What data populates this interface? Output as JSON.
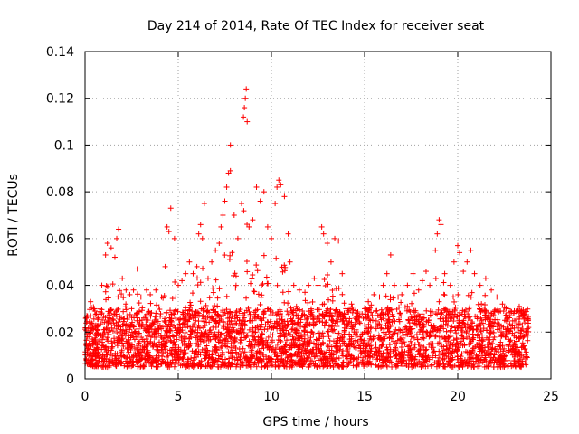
{
  "chart_data": {
    "type": "scatter",
    "title": "Day 214 of 2014, Rate Of TEC Index for receiver seat",
    "xlabel": "GPS time / hours",
    "ylabel": "ROTI / TECUs",
    "xlim": [
      0,
      25
    ],
    "ylim": [
      0,
      0.14
    ],
    "xticks": [
      0,
      5,
      10,
      15,
      20,
      25
    ],
    "yticks": [
      0,
      0.02,
      0.04,
      0.06,
      0.08,
      0.1,
      0.12,
      0.14
    ],
    "xtick_labels": [
      "0",
      "5",
      "10",
      "15",
      "20",
      "25"
    ],
    "ytick_labels": [
      "0",
      "0.02",
      "0.04",
      "0.06",
      "0.08",
      "0.1",
      "0.12",
      "0.14"
    ],
    "grid": true,
    "marker": "+",
    "color": "#ff0000",
    "series": [
      {
        "name": "ROTI",
        "x_range": [
          0,
          23.8
        ],
        "baseline_band": [
          0.005,
          0.03
        ],
        "notes": "Dense background of points between ~0.005 and ~0.03 TECU/min across the whole day.",
        "points": [
          [
            0.1,
            0.027
          ],
          [
            0.3,
            0.033
          ],
          [
            0.5,
            0.03
          ],
          [
            0.9,
            0.04
          ],
          [
            1.1,
            0.053
          ],
          [
            1.2,
            0.058
          ],
          [
            1.4,
            0.056
          ],
          [
            1.6,
            0.052
          ],
          [
            1.7,
            0.06
          ],
          [
            1.8,
            0.064
          ],
          [
            2.0,
            0.043
          ],
          [
            2.2,
            0.038
          ],
          [
            2.4,
            0.036
          ],
          [
            2.6,
            0.038
          ],
          [
            2.8,
            0.047
          ],
          [
            3.0,
            0.035
          ],
          [
            3.3,
            0.038
          ],
          [
            3.5,
            0.036
          ],
          [
            3.8,
            0.038
          ],
          [
            4.1,
            0.035
          ],
          [
            4.3,
            0.048
          ],
          [
            4.4,
            0.065
          ],
          [
            4.5,
            0.063
          ],
          [
            4.6,
            0.073
          ],
          [
            4.8,
            0.06
          ],
          [
            5.0,
            0.04
          ],
          [
            5.2,
            0.042
          ],
          [
            5.4,
            0.045
          ],
          [
            5.6,
            0.05
          ],
          [
            5.8,
            0.045
          ],
          [
            6.0,
            0.048
          ],
          [
            6.1,
            0.062
          ],
          [
            6.2,
            0.066
          ],
          [
            6.3,
            0.06
          ],
          [
            6.4,
            0.075
          ],
          [
            6.6,
            0.043
          ],
          [
            6.8,
            0.05
          ],
          [
            7.0,
            0.055
          ],
          [
            7.2,
            0.058
          ],
          [
            7.3,
            0.065
          ],
          [
            7.4,
            0.07
          ],
          [
            7.5,
            0.076
          ],
          [
            7.6,
            0.082
          ],
          [
            7.7,
            0.088
          ],
          [
            7.8,
            0.089
          ],
          [
            7.8,
            0.1
          ],
          [
            8.0,
            0.07
          ],
          [
            8.2,
            0.06
          ],
          [
            8.4,
            0.075
          ],
          [
            8.5,
            0.112
          ],
          [
            8.55,
            0.116
          ],
          [
            8.6,
            0.12
          ],
          [
            8.65,
            0.124
          ],
          [
            8.7,
            0.11
          ],
          [
            8.8,
            0.065
          ],
          [
            9.0,
            0.068
          ],
          [
            9.2,
            0.082
          ],
          [
            9.4,
            0.076
          ],
          [
            9.6,
            0.08
          ],
          [
            9.8,
            0.065
          ],
          [
            10.0,
            0.06
          ],
          [
            10.2,
            0.075
          ],
          [
            10.3,
            0.082
          ],
          [
            10.4,
            0.085
          ],
          [
            10.5,
            0.083
          ],
          [
            10.7,
            0.078
          ],
          [
            10.9,
            0.062
          ],
          [
            11.0,
            0.05
          ],
          [
            11.2,
            0.04
          ],
          [
            11.5,
            0.038
          ],
          [
            11.8,
            0.037
          ],
          [
            12.0,
            0.04
          ],
          [
            12.3,
            0.043
          ],
          [
            12.5,
            0.04
          ],
          [
            12.7,
            0.065
          ],
          [
            12.8,
            0.062
          ],
          [
            13.0,
            0.058
          ],
          [
            13.2,
            0.05
          ],
          [
            13.4,
            0.06
          ],
          [
            13.6,
            0.059
          ],
          [
            13.8,
            0.045
          ],
          [
            14.0,
            0.03
          ],
          [
            14.3,
            0.032
          ],
          [
            14.6,
            0.028
          ],
          [
            15.0,
            0.03
          ],
          [
            15.2,
            0.033
          ],
          [
            15.5,
            0.036
          ],
          [
            15.8,
            0.035
          ],
          [
            16.0,
            0.04
          ],
          [
            16.2,
            0.045
          ],
          [
            16.4,
            0.053
          ],
          [
            16.6,
            0.04
          ],
          [
            16.8,
            0.035
          ],
          [
            17.0,
            0.036
          ],
          [
            17.3,
            0.04
          ],
          [
            17.6,
            0.045
          ],
          [
            17.9,
            0.038
          ],
          [
            18.1,
            0.042
          ],
          [
            18.3,
            0.046
          ],
          [
            18.5,
            0.04
          ],
          [
            18.8,
            0.055
          ],
          [
            18.9,
            0.062
          ],
          [
            19.0,
            0.068
          ],
          [
            19.1,
            0.066
          ],
          [
            19.3,
            0.045
          ],
          [
            19.6,
            0.04
          ],
          [
            19.8,
            0.05
          ],
          [
            20.0,
            0.057
          ],
          [
            20.1,
            0.054
          ],
          [
            20.3,
            0.046
          ],
          [
            20.5,
            0.05
          ],
          [
            20.7,
            0.055
          ],
          [
            20.9,
            0.045
          ],
          [
            21.2,
            0.04
          ],
          [
            21.5,
            0.043
          ],
          [
            21.8,
            0.038
          ],
          [
            22.1,
            0.035
          ],
          [
            22.4,
            0.032
          ],
          [
            22.7,
            0.03
          ],
          [
            23.0,
            0.028
          ],
          [
            23.3,
            0.031
          ],
          [
            23.6,
            0.026
          ],
          [
            23.8,
            0.022
          ]
        ]
      }
    ]
  }
}
